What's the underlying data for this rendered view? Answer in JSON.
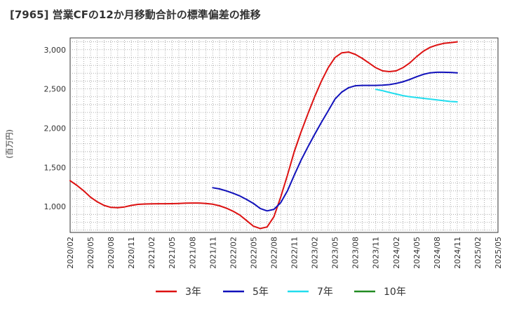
{
  "title": "[7965]  営業CFの12か月移動合計の標準偏差の推移",
  "chart_data": {
    "type": "line",
    "title": "[7965]  営業CFの12か月移動合計の標準偏差の推移",
    "xlabel": "",
    "ylabel": "(百万円)",
    "ylim": [
      670,
      3150
    ],
    "xlim": [
      "2020-02",
      "2025-05"
    ],
    "yticks": [
      1000,
      1500,
      2000,
      2500,
      3000
    ],
    "ytick_labels": [
      "1,000",
      "1,500",
      "2,000",
      "2,500",
      "3,000"
    ],
    "xtick_labels": [
      "2020/02",
      "2020/05",
      "2020/08",
      "2020/11",
      "2021/02",
      "2021/05",
      "2021/08",
      "2021/11",
      "2022/02",
      "2022/05",
      "2022/08",
      "2022/11",
      "2023/02",
      "2023/05",
      "2023/08",
      "2023/11",
      "2024/02",
      "2024/05",
      "2024/08",
      "2024/11",
      "2025/02",
      "2025/05"
    ],
    "grid": true,
    "legend_position": "bottom",
    "series": [
      {
        "name": "3年",
        "color": "#dd1111",
        "x": [
          "2020-02",
          "2020-03",
          "2020-04",
          "2020-05",
          "2020-06",
          "2020-07",
          "2020-08",
          "2020-09",
          "2020-10",
          "2020-11",
          "2020-12",
          "2021-01",
          "2021-02",
          "2021-03",
          "2021-04",
          "2021-05",
          "2021-06",
          "2021-07",
          "2021-08",
          "2021-09",
          "2021-10",
          "2021-11",
          "2021-12",
          "2022-01",
          "2022-02",
          "2022-03",
          "2022-04",
          "2022-05",
          "2022-06",
          "2022-07",
          "2022-08",
          "2022-09",
          "2022-10",
          "2022-11",
          "2022-12",
          "2023-01",
          "2023-02",
          "2023-03",
          "2023-04",
          "2023-05",
          "2023-06",
          "2023-07",
          "2023-08",
          "2023-09",
          "2023-10",
          "2023-11",
          "2023-12",
          "2024-01",
          "2024-02",
          "2024-03",
          "2024-04",
          "2024-05",
          "2024-06",
          "2024-07",
          "2024-08",
          "2024-09",
          "2024-10",
          "2024-11"
        ],
        "values": [
          1330,
          1270,
          1200,
          1120,
          1060,
          1015,
          990,
          985,
          995,
          1015,
          1028,
          1033,
          1035,
          1036,
          1036,
          1037,
          1040,
          1043,
          1045,
          1045,
          1040,
          1030,
          1010,
          980,
          940,
          890,
          820,
          750,
          720,
          740,
          870,
          1120,
          1400,
          1700,
          1950,
          2180,
          2400,
          2600,
          2770,
          2900,
          2960,
          2970,
          2940,
          2890,
          2830,
          2770,
          2730,
          2720,
          2730,
          2770,
          2830,
          2910,
          2980,
          3030,
          3060,
          3080,
          3090,
          3100
        ]
      },
      {
        "name": "5年",
        "color": "#1111bb",
        "x": [
          "2021-11",
          "2021-12",
          "2022-01",
          "2022-02",
          "2022-03",
          "2022-04",
          "2022-05",
          "2022-06",
          "2022-07",
          "2022-08",
          "2022-09",
          "2022-10",
          "2022-11",
          "2022-12",
          "2023-01",
          "2023-02",
          "2023-03",
          "2023-04",
          "2023-05",
          "2023-06",
          "2023-07",
          "2023-08",
          "2023-09",
          "2023-10",
          "2023-11",
          "2023-12",
          "2024-01",
          "2024-02",
          "2024-03",
          "2024-04",
          "2024-05",
          "2024-06",
          "2024-07",
          "2024-08",
          "2024-09",
          "2024-10",
          "2024-11"
        ],
        "values": [
          1240,
          1225,
          1200,
          1170,
          1135,
          1090,
          1040,
          975,
          945,
          965,
          1050,
          1200,
          1400,
          1590,
          1760,
          1920,
          2075,
          2220,
          2370,
          2460,
          2515,
          2540,
          2545,
          2545,
          2545,
          2548,
          2555,
          2570,
          2590,
          2620,
          2655,
          2685,
          2705,
          2712,
          2712,
          2710,
          2705
        ]
      },
      {
        "name": "7年",
        "color": "#22ddee",
        "x": [
          "2023-11",
          "2023-12",
          "2024-01",
          "2024-02",
          "2024-03",
          "2024-04",
          "2024-05",
          "2024-06",
          "2024-07",
          "2024-08",
          "2024-09",
          "2024-10",
          "2024-11"
        ],
        "values": [
          2495,
          2478,
          2455,
          2435,
          2415,
          2400,
          2390,
          2380,
          2370,
          2360,
          2350,
          2340,
          2335
        ]
      },
      {
        "name": "10年",
        "color": "#228b22",
        "x": [],
        "values": []
      }
    ]
  }
}
